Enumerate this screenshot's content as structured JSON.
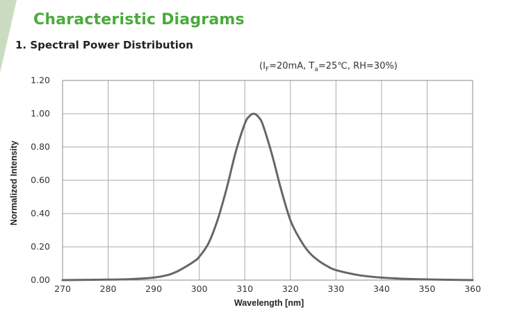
{
  "header": {
    "section_title": "Characteristic Diagrams",
    "chart_title": "1. Spectral Power Distribution"
  },
  "conditions": {
    "open": "(I",
    "if_sub": "F",
    "mid": "=20mA, T",
    "ta_sub": "a",
    "close": "=25℃, RH=30%)"
  },
  "colors": {
    "accent_green": "#4aaa3c",
    "stripe_green": "#c9dcc0",
    "curve": "#666666",
    "grid": "#aaaaaa"
  },
  "chart_data": {
    "type": "line",
    "xlabel": "Wavelength [nm]",
    "ylabel": "Normalized Intensity",
    "xlim": [
      270,
      360
    ],
    "ylim": [
      0,
      1.2
    ],
    "x_ticks": [
      "270",
      "280",
      "290",
      "300",
      "310",
      "320",
      "330",
      "340",
      "350",
      "360"
    ],
    "y_ticks": [
      "0.00",
      "0.20",
      "0.40",
      "0.60",
      "0.80",
      "1.00",
      "1.20"
    ],
    "grid": true,
    "series": [
      {
        "x": [
          270,
          280,
          285,
          290,
          293,
          295,
          297,
          299,
          300,
          302,
          304,
          306,
          308,
          310,
          311,
          312,
          313,
          314,
          316,
          318,
          320,
          322,
          324,
          326,
          328,
          330,
          335,
          340,
          345,
          350,
          360
        ],
        "y": [
          0.0,
          0.003,
          0.006,
          0.015,
          0.03,
          0.05,
          0.08,
          0.115,
          0.14,
          0.22,
          0.36,
          0.55,
          0.77,
          0.94,
          0.985,
          1.0,
          0.98,
          0.93,
          0.75,
          0.54,
          0.36,
          0.25,
          0.17,
          0.12,
          0.085,
          0.06,
          0.03,
          0.015,
          0.008,
          0.004,
          0.0
        ]
      }
    ]
  }
}
